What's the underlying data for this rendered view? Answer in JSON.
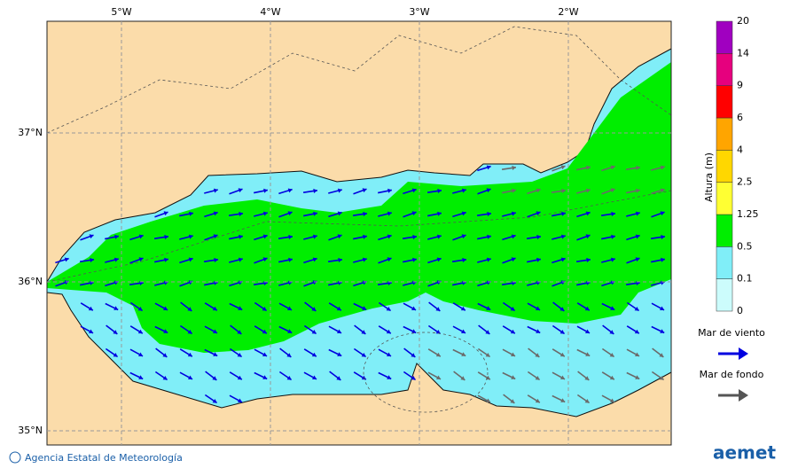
{
  "map": {
    "lon_labels": [
      "5°W",
      "4°W",
      "3°W",
      "2°W"
    ],
    "lat_labels": [
      "37°N",
      "36°N",
      "35°N"
    ],
    "colorbar": {
      "title": "Altura (m)",
      "levels": [
        0,
        0.1,
        0.5,
        1.25,
        2.5,
        4,
        6,
        9,
        14,
        20
      ],
      "colors": [
        "#ccfcfc",
        "#80eef8",
        "#00ee00",
        "#ffff33",
        "#ffd700",
        "#ffa500",
        "#ff0000",
        "#e6007e",
        "#a000c0"
      ]
    },
    "legend": [
      {
        "label": "Mar de viento",
        "color": "#0000e0"
      },
      {
        "label": "Mar de fondo",
        "color": "#555555"
      }
    ],
    "footer": "Agencia Estatal de Meteorología",
    "logo": "aemet"
  }
}
